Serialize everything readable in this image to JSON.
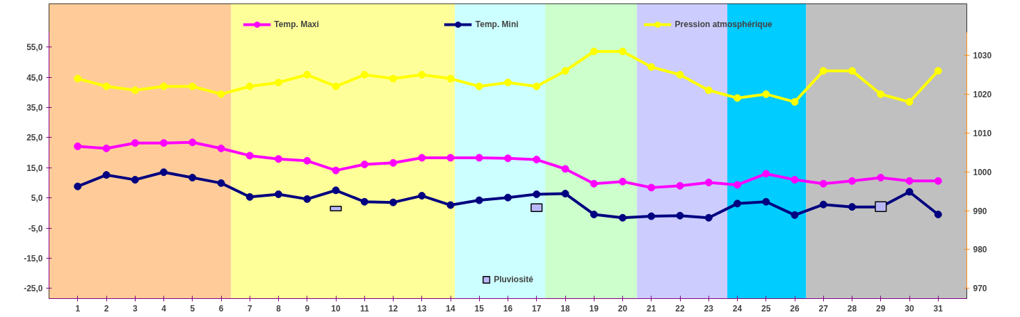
{
  "chart_data": {
    "type": "line",
    "x": [
      1,
      2,
      3,
      4,
      5,
      6,
      7,
      8,
      9,
      10,
      11,
      12,
      13,
      14,
      15,
      16,
      17,
      18,
      19,
      20,
      21,
      22,
      23,
      24,
      25,
      26,
      27,
      28,
      29,
      30,
      31
    ],
    "xlim": [
      0,
      32
    ],
    "xticks": [
      1,
      2,
      3,
      4,
      5,
      6,
      7,
      8,
      9,
      10,
      11,
      12,
      13,
      14,
      15,
      16,
      17,
      18,
      19,
      20,
      21,
      22,
      23,
      24,
      25,
      26,
      27,
      28,
      29,
      30,
      31
    ],
    "ylim": [
      -25,
      60
    ],
    "yticks": [
      {
        "value": -25,
        "label": "-25,0"
      },
      {
        "value": -15,
        "label": "-15,0"
      },
      {
        "value": -5,
        "label": "-5,0"
      },
      {
        "value": 5,
        "label": "5,0"
      },
      {
        "value": 15,
        "label": "15,0"
      },
      {
        "value": 25,
        "label": "25,0"
      },
      {
        "value": 35,
        "label": "35,0"
      },
      {
        "value": 45,
        "label": "45,0"
      },
      {
        "value": 55,
        "label": "55,0"
      }
    ],
    "y2lim": [
      970,
      1036
    ],
    "y2ticks": [
      970,
      980,
      990,
      1000,
      1010,
      1020,
      1030
    ],
    "marker": "circle",
    "grid": false,
    "legend": "top",
    "series": [
      {
        "name": "Temp. Maxi",
        "color": "#ff00ff",
        "values": [
          22.1,
          21.4,
          23.2,
          23.2,
          23.4,
          21.4,
          19.0,
          17.9,
          17.3,
          14.1,
          16.1,
          16.6,
          18.3,
          18.3,
          18.3,
          18.1,
          17.7,
          14.6,
          9.7,
          10.4,
          8.4,
          9.0,
          10.1,
          9.3,
          13.0,
          11.0,
          9.7,
          10.6,
          11.7,
          10.6,
          10.6
        ]
      },
      {
        "name": "Temp. Mini",
        "color": "#000080",
        "values": [
          8.8,
          12.6,
          11.0,
          13.5,
          11.7,
          9.9,
          5.3,
          6.2,
          4.6,
          7.5,
          3.7,
          3.5,
          5.7,
          2.6,
          4.2,
          5.1,
          6.2,
          6.4,
          -0.5,
          -1.6,
          -1.1,
          -0.9,
          -1.6,
          3.1,
          3.7,
          -0.7,
          2.8,
          2.0,
          2.0,
          7.0,
          -0.5
        ]
      },
      {
        "name": "Pression atmosphérique",
        "color": "#ffff00",
        "axis": "y2",
        "values": [
          1024,
          1022,
          1021,
          1022,
          1022,
          1020,
          1022,
          1023,
          1025,
          1022,
          1025,
          1024,
          1025,
          1024,
          1022,
          1023,
          1022,
          1026,
          1031,
          1031,
          1027,
          1025,
          1021,
          1019,
          1020,
          1018,
          1026,
          1026,
          1020,
          1018,
          1026
        ]
      },
      {
        "name": "Pluviosité",
        "type": "bar",
        "color": "#b8b8f8",
        "base": [
          null,
          null,
          null,
          null,
          null,
          null,
          null,
          null,
          null,
          0.7,
          null,
          null,
          null,
          null,
          null,
          null,
          0.5,
          null,
          null,
          null,
          null,
          null,
          null,
          null,
          null,
          null,
          null,
          null,
          0.5,
          null,
          null
        ],
        "values": [
          null,
          null,
          null,
          null,
          null,
          null,
          null,
          null,
          null,
          1.5,
          null,
          null,
          null,
          null,
          null,
          null,
          2.5,
          null,
          null,
          null,
          null,
          null,
          null,
          null,
          null,
          null,
          null,
          null,
          3.2,
          null,
          null
        ]
      }
    ],
    "bands": [
      {
        "axis": "x",
        "from": 0,
        "to": 6.35,
        "color": "#ffcc99"
      },
      {
        "axis": "x",
        "from": 6.35,
        "to": 14.15,
        "color": "#ffff99"
      },
      {
        "axis": "x",
        "from": 14.15,
        "to": 17.3,
        "color": "#ccffff"
      },
      {
        "axis": "x",
        "from": 17.3,
        "to": 20.5,
        "color": "#ccffcc"
      },
      {
        "axis": "x",
        "from": 20.5,
        "to": 23.65,
        "color": "#ccccff"
      },
      {
        "axis": "x",
        "from": 23.65,
        "to": 26.4,
        "color": "#00ccff"
      },
      {
        "axis": "x",
        "from": 26.4,
        "to": 32,
        "color": "#c0c0c0"
      }
    ]
  }
}
